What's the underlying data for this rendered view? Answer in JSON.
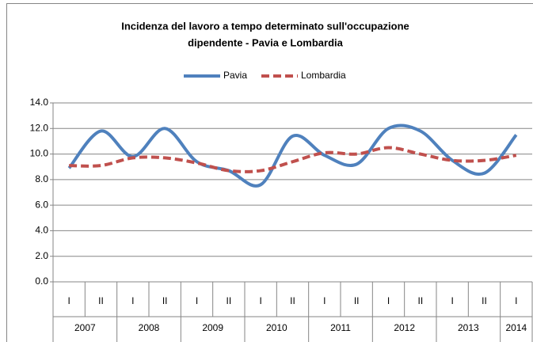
{
  "chart_data": {
    "type": "line",
    "title": [
      "Incidenza del lavoro a tempo determinato sull'occupazione",
      "dipendente - Pavia e Lombardia"
    ],
    "categories": [
      "I",
      "II",
      "I",
      "II",
      "I",
      "II",
      "I",
      "II",
      "I",
      "II",
      "I",
      "II",
      "I",
      "II",
      "I"
    ],
    "year_groups": [
      {
        "label": "2007",
        "count": 2
      },
      {
        "label": "2008",
        "count": 2
      },
      {
        "label": "2009",
        "count": 2
      },
      {
        "label": "2010",
        "count": 2
      },
      {
        "label": "2011",
        "count": 2
      },
      {
        "label": "2012",
        "count": 2
      },
      {
        "label": "2013",
        "count": 2
      },
      {
        "label": "2014",
        "count": 1
      }
    ],
    "series": [
      {
        "name": "Pavia",
        "color": "#4f81bd",
        "dash": "solid",
        "values": [
          8.9,
          11.8,
          9.8,
          12.0,
          9.4,
          8.7,
          7.6,
          11.4,
          9.9,
          9.2,
          12.0,
          11.8,
          9.5,
          8.5,
          11.5
        ]
      },
      {
        "name": "Lombardia",
        "color": "#c0504d",
        "dash": "dashed",
        "values": [
          9.1,
          9.1,
          9.7,
          9.7,
          9.3,
          8.7,
          8.7,
          9.4,
          10.1,
          10.0,
          10.5,
          10.0,
          9.5,
          9.5,
          9.9
        ]
      }
    ],
    "ylim": [
      0,
      14
    ],
    "yticks": [
      {
        "value": 0,
        "label": "0.0"
      },
      {
        "value": 2,
        "label": "2.0"
      },
      {
        "value": 4,
        "label": "4.0"
      },
      {
        "value": 6,
        "label": "6.0"
      },
      {
        "value": 8,
        "label": "8.0"
      },
      {
        "value": 10,
        "label": "10.0"
      },
      {
        "value": 12,
        "label": "12.0"
      },
      {
        "value": 14,
        "label": "14.0"
      }
    ],
    "grid": true,
    "smooth": true,
    "legend": "top"
  }
}
